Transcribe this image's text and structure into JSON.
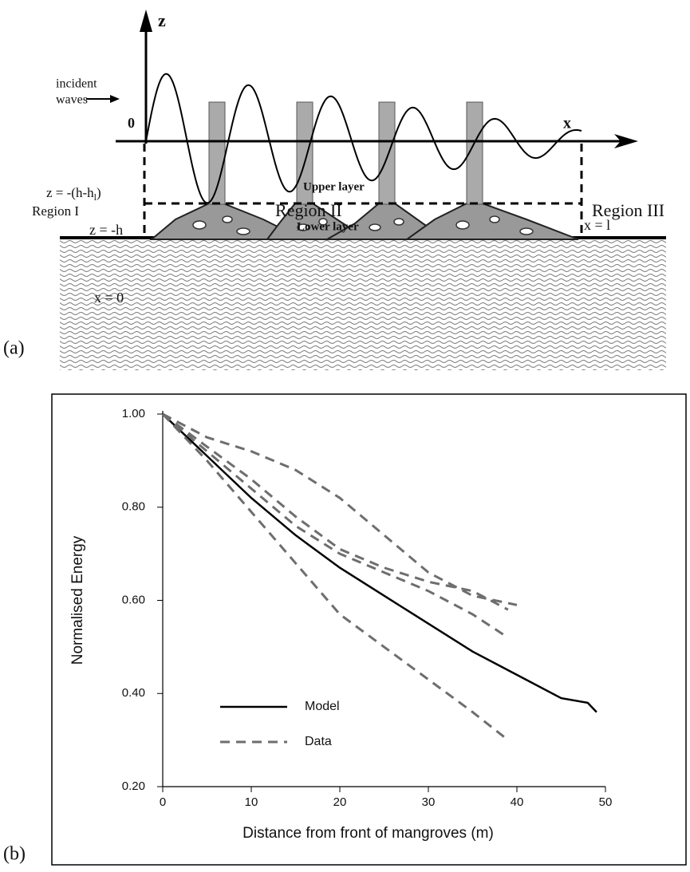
{
  "diagram": {
    "panel_label": "(a)",
    "z_axis": "z",
    "x_axis": "x",
    "origin": "0",
    "incident_1": "incident",
    "incident_2": "waves",
    "depth_main": "z = -(h-h",
    "depth_sub": "l",
    "depth_close": ")",
    "upper_layer": "Upper layer",
    "lower_layer": "Lower layer",
    "region_1": "Region I",
    "region_2": "Region II",
    "region_3": "Region III",
    "x_zero": "x = 0",
    "z_bottom": "z = -h",
    "x_end": "x = l"
  },
  "chart_data": {
    "type": "line",
    "panel_label": "(b)",
    "x_label": "Distance from front of mangroves (m)",
    "y_label": "Normalised Energy",
    "xlim": [
      0,
      50
    ],
    "ylim": [
      0.2,
      1.0
    ],
    "xticks": [
      0,
      10,
      20,
      30,
      40,
      50
    ],
    "yticks": [
      {
        "value": 0.2,
        "label": "0.20"
      },
      {
        "value": 0.4,
        "label": "0.40"
      },
      {
        "value": 0.6,
        "label": "0.60"
      },
      {
        "value": 0.8,
        "label": "0.80"
      },
      {
        "value": 1.0,
        "label": "1.00"
      }
    ],
    "series": [
      {
        "name": "Model",
        "color": "#000000",
        "dash": false,
        "x": [
          0,
          5,
          10,
          15,
          20,
          25,
          30,
          35,
          40,
          45,
          48,
          49
        ],
        "values": [
          1.0,
          0.91,
          0.82,
          0.74,
          0.67,
          0.61,
          0.55,
          0.49,
          0.44,
          0.39,
          0.38,
          0.36
        ]
      },
      {
        "name": "Data",
        "color": "#6e6e6e",
        "dash": true,
        "x": [
          0,
          5,
          10,
          15,
          20,
          25,
          30,
          35,
          40,
          null,
          0,
          5,
          10,
          15,
          20,
          25,
          30,
          35,
          39,
          null,
          0,
          5,
          10,
          15,
          20,
          25,
          30,
          35,
          39,
          null,
          0,
          5,
          10,
          15,
          20,
          25,
          30,
          35,
          39
        ],
        "values": [
          1.0,
          0.95,
          0.92,
          0.88,
          0.82,
          0.74,
          0.66,
          0.61,
          0.59,
          null,
          1.0,
          0.93,
          0.86,
          0.78,
          0.71,
          0.67,
          0.64,
          0.62,
          0.58,
          null,
          1.0,
          0.92,
          0.84,
          0.76,
          0.7,
          0.66,
          0.62,
          0.57,
          0.52,
          null,
          1.0,
          0.9,
          0.79,
          0.68,
          0.57,
          0.5,
          0.43,
          0.36,
          0.3
        ]
      }
    ]
  }
}
